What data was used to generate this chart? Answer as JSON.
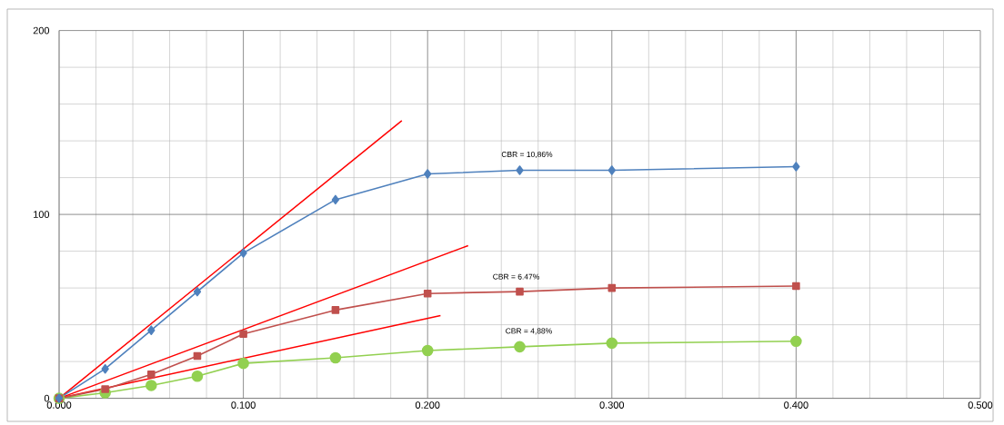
{
  "chart_data": {
    "type": "line",
    "x": [
      0,
      0.025,
      0.05,
      0.075,
      0.1,
      0.15,
      0.2,
      0.25,
      0.3,
      0.4
    ],
    "series": [
      {
        "color": "#4f81bd",
        "marker": "diamond",
        "values": [
          0,
          16,
          37,
          58,
          79,
          108,
          122,
          124,
          124,
          126
        ]
      },
      {
        "color": "#c0504d",
        "marker": "square",
        "values": [
          0,
          5,
          13,
          23,
          35,
          48,
          57,
          58,
          60,
          61
        ]
      },
      {
        "color": "#92d050",
        "marker": "circle",
        "values": [
          0,
          3,
          7,
          12,
          19,
          22,
          26,
          28,
          30,
          31
        ]
      },
      {
        "color": "#ff0000",
        "marker": "none",
        "x": [
          0,
          0.186
        ],
        "values": [
          0,
          151
        ]
      },
      {
        "color": "#ff0000",
        "marker": "none",
        "x": [
          0,
          0.222
        ],
        "values": [
          0,
          83
        ]
      },
      {
        "color": "#ff0000",
        "marker": "none",
        "x": [
          0,
          0.207
        ],
        "values": [
          0,
          45
        ]
      }
    ],
    "annotations": [
      "CBR = 10,86%",
      "CBR = 6.47%",
      "CBR = 4,88%"
    ],
    "xlim": [
      0,
      0.5
    ],
    "ylim": [
      0,
      200
    ],
    "xticks": [
      {
        "value": 0,
        "label": "0.000"
      },
      {
        "value": 0.1,
        "label": "0.100"
      },
      {
        "value": 0.2,
        "label": "0.200"
      },
      {
        "value": 0.3,
        "label": "0.300"
      },
      {
        "value": 0.4,
        "label": "0.400"
      },
      {
        "value": 0.5,
        "label": "0.500"
      }
    ],
    "yticks": [
      0,
      100,
      200
    ],
    "grid": true,
    "line_style": "solid"
  }
}
